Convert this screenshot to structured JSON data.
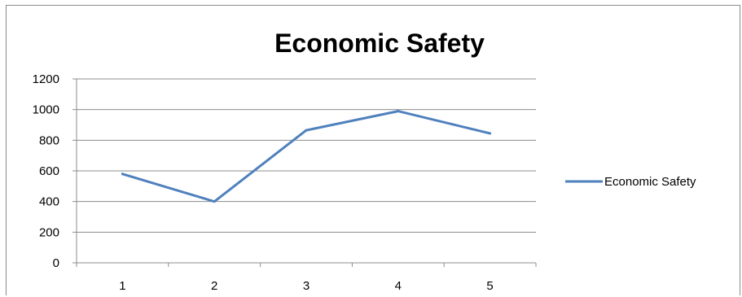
{
  "chart_data": {
    "type": "line",
    "title": "Economic Safety",
    "xlabel": "",
    "ylabel": "",
    "categories": [
      "1",
      "2",
      "3",
      "4",
      "5"
    ],
    "series": [
      {
        "name": "Economic Safety",
        "values": [
          580,
          400,
          865,
          990,
          845
        ],
        "color": "#4f81bd"
      }
    ],
    "ylim": [
      0,
      1200
    ],
    "yticks": [
      0,
      200,
      400,
      600,
      800,
      1000,
      1200
    ],
    "grid": true,
    "legend": "right"
  }
}
